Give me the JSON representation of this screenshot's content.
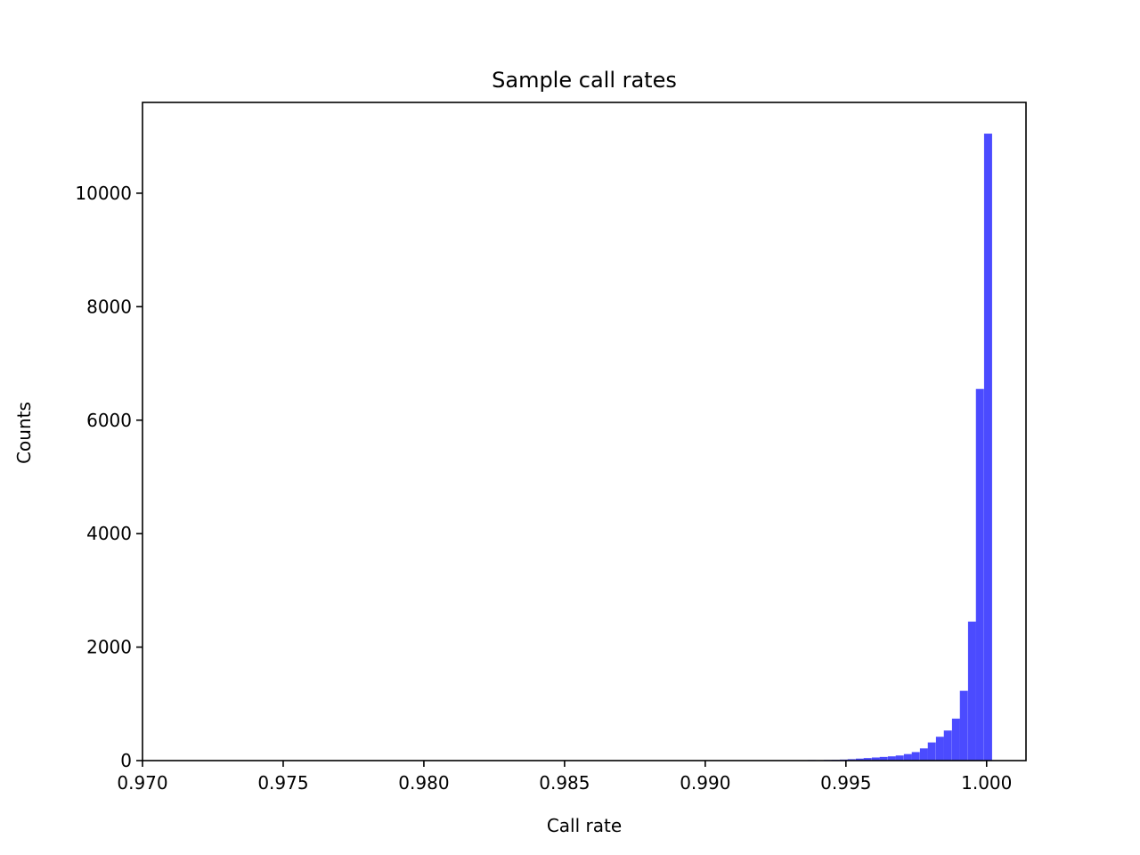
{
  "chart_data": {
    "type": "bar",
    "title": "Sample call rates",
    "xlabel": "Call rate",
    "ylabel": "Counts",
    "xlim": [
      0.97,
      1.0014
    ],
    "ylim": [
      0,
      11600
    ],
    "xticks": [
      0.97,
      0.975,
      0.98,
      0.985,
      0.99,
      0.995,
      1.0
    ],
    "xtick_labels": [
      "0.970",
      "0.975",
      "0.980",
      "0.985",
      "0.990",
      "0.995",
      "1.000"
    ],
    "yticks": [
      0,
      2000,
      4000,
      6000,
      8000,
      10000
    ],
    "ytick_labels": [
      "0",
      "2000",
      "4000",
      "6000",
      "8000",
      "10000"
    ],
    "grid": false,
    "bar_color": "#4b4bff",
    "bin_width": 0.000285,
    "bins": [
      {
        "x": 0.99364,
        "count": 10
      },
      {
        "x": 0.99392,
        "count": 8
      },
      {
        "x": 0.99421,
        "count": 12
      },
      {
        "x": 0.99449,
        "count": 14
      },
      {
        "x": 0.99478,
        "count": 18
      },
      {
        "x": 0.99506,
        "count": 25
      },
      {
        "x": 0.99535,
        "count": 35
      },
      {
        "x": 0.99563,
        "count": 45
      },
      {
        "x": 0.99592,
        "count": 55
      },
      {
        "x": 0.9962,
        "count": 65
      },
      {
        "x": 0.99649,
        "count": 75
      },
      {
        "x": 0.99677,
        "count": 90
      },
      {
        "x": 0.99706,
        "count": 115
      },
      {
        "x": 0.99734,
        "count": 150
      },
      {
        "x": 0.99763,
        "count": 215
      },
      {
        "x": 0.99791,
        "count": 320
      },
      {
        "x": 0.9982,
        "count": 420
      },
      {
        "x": 0.99848,
        "count": 530
      },
      {
        "x": 0.99877,
        "count": 740
      },
      {
        "x": 0.99905,
        "count": 1230
      },
      {
        "x": 0.99934,
        "count": 2450
      },
      {
        "x": 0.99962,
        "count": 6550
      },
      {
        "x": 0.99991,
        "count": 11050
      }
    ]
  }
}
